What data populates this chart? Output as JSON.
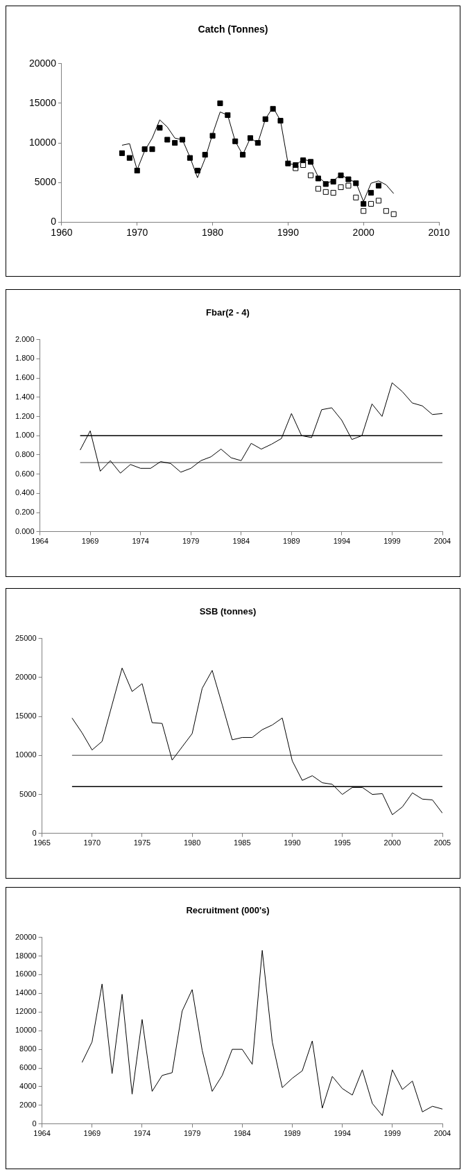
{
  "chart_data": [
    {
      "type": "line",
      "title": "Catch (Tonnes)",
      "xlim": [
        1960,
        2010
      ],
      "xticks": [
        1960,
        1970,
        1980,
        1990,
        2000,
        2010
      ],
      "ylim": [
        0,
        20000
      ],
      "yticks": [
        0,
        5000,
        10000,
        15000,
        20000
      ],
      "grid": false,
      "legend": false,
      "series": [
        {
          "type": "line",
          "color": "#000000",
          "x": [
            1968,
            1969,
            1970,
            1971,
            1972,
            1973,
            1974,
            1975,
            1976,
            1977,
            1978,
            1979,
            1980,
            1981,
            1982,
            1983,
            1984,
            1985,
            1986,
            1987,
            1988,
            1989,
            1990,
            1991,
            1992,
            1993,
            1994,
            1995,
            1996,
            1997,
            1998,
            1999,
            2000,
            2001,
            2002,
            2003,
            2004
          ],
          "values": [
            9700,
            9900,
            6600,
            9000,
            10600,
            12900,
            12000,
            10600,
            10400,
            8200,
            5600,
            8000,
            11100,
            13900,
            13500,
            10200,
            8500,
            10600,
            10000,
            13000,
            14500,
            12800,
            7400,
            7200,
            7900,
            7700,
            5700,
            4900,
            5200,
            6000,
            5400,
            5000,
            2600,
            4900,
            5200,
            4700,
            3600
          ]
        },
        {
          "type": "scatter",
          "marker": "square",
          "color": "#ffffff",
          "x": [
            1991,
            1992,
            1993,
            1994,
            1995,
            1996,
            1997,
            1998,
            1999,
            2000,
            2001,
            2002,
            2003,
            2004
          ],
          "values": [
            6800,
            7200,
            5900,
            4200,
            3800,
            3700,
            4400,
            4600,
            3100,
            1400,
            2300,
            2700,
            1400,
            1000
          ]
        },
        {
          "type": "scatter",
          "marker": "square",
          "color": "#000000",
          "x": [
            1968,
            1969,
            1970,
            1971,
            1972,
            1973,
            1974,
            1975,
            1976,
            1977,
            1978,
            1979,
            1980,
            1981,
            1982,
            1983,
            1984,
            1985,
            1986,
            1987,
            1988,
            1989,
            1990,
            1991,
            1992,
            1993,
            1994,
            1995,
            1996,
            1997,
            1998,
            1999,
            2000,
            2001,
            2002
          ],
          "values": [
            8700,
            8100,
            6500,
            9200,
            9200,
            11900,
            10400,
            10000,
            10400,
            8100,
            6500,
            8500,
            10900,
            15000,
            13500,
            10200,
            8500,
            10600,
            10000,
            13000,
            14300,
            12800,
            7400,
            7200,
            7800,
            7600,
            5500,
            4800,
            5100,
            5900,
            5400,
            4900,
            2300,
            3700,
            4600
          ]
        }
      ]
    },
    {
      "type": "line",
      "title": "Fbar(2 - 4)",
      "xlim": [
        1964,
        2004
      ],
      "xticks": [
        1964,
        1969,
        1974,
        1979,
        1984,
        1989,
        1994,
        1999,
        2004
      ],
      "ylim": [
        0,
        2
      ],
      "yticks": [
        {
          "value": 0,
          "label": "0.000"
        },
        {
          "value": 0.2,
          "label": "0.200"
        },
        {
          "value": 0.4,
          "label": "0.400"
        },
        {
          "value": 0.6,
          "label": "0.600"
        },
        {
          "value": 0.8,
          "label": "0.800"
        },
        {
          "value": 1,
          "label": "1.000"
        },
        {
          "value": 1.2,
          "label": "1.200"
        },
        {
          "value": 1.4,
          "label": "1.400"
        },
        {
          "value": 1.6,
          "label": "1.600"
        },
        {
          "value": 1.8,
          "label": "1.800"
        },
        {
          "value": 2,
          "label": "2.000"
        }
      ],
      "grid": false,
      "legend": false,
      "ref_lines": [
        {
          "axis": "y",
          "value": 1.0,
          "color": "#000000"
        },
        {
          "axis": "y",
          "value": 0.72,
          "color": "#808080"
        }
      ],
      "series": [
        {
          "type": "line",
          "color": "#000000",
          "x": [
            1968,
            1969,
            1970,
            1971,
            1972,
            1973,
            1974,
            1975,
            1976,
            1977,
            1978,
            1979,
            1980,
            1981,
            1982,
            1983,
            1984,
            1985,
            1986,
            1987,
            1988,
            1989,
            1990,
            1991,
            1992,
            1993,
            1994,
            1995,
            1996,
            1997,
            1998,
            1999,
            2000,
            2001,
            2002,
            2003,
            2004
          ],
          "values": [
            0.85,
            1.05,
            0.63,
            0.74,
            0.61,
            0.7,
            0.66,
            0.66,
            0.73,
            0.71,
            0.62,
            0.66,
            0.74,
            0.78,
            0.86,
            0.77,
            0.74,
            0.92,
            0.86,
            0.91,
            0.97,
            1.23,
            1.0,
            0.98,
            1.27,
            1.29,
            1.16,
            0.96,
            1.0,
            1.33,
            1.2,
            1.55,
            1.46,
            1.34,
            1.31,
            1.22,
            1.23
          ]
        }
      ]
    },
    {
      "type": "line",
      "title": "SSB (tonnes)",
      "xlim": [
        1965,
        2005
      ],
      "xticks": [
        1965,
        1970,
        1975,
        1980,
        1985,
        1990,
        1995,
        2000,
        2005
      ],
      "ylim": [
        0,
        25000
      ],
      "yticks": [
        0,
        5000,
        10000,
        15000,
        20000,
        25000
      ],
      "grid": false,
      "legend": false,
      "ref_lines": [
        {
          "axis": "y",
          "value": 10000,
          "color": "#808080"
        },
        {
          "axis": "y",
          "value": 6000,
          "color": "#000000"
        }
      ],
      "series": [
        {
          "type": "line",
          "color": "#000000",
          "x": [
            1968,
            1969,
            1970,
            1971,
            1972,
            1973,
            1974,
            1975,
            1976,
            1977,
            1978,
            1979,
            1980,
            1981,
            1982,
            1983,
            1984,
            1985,
            1986,
            1987,
            1988,
            1989,
            1990,
            1991,
            1992,
            1993,
            1994,
            1995,
            1996,
            1997,
            1998,
            1999,
            2000,
            2001,
            2002,
            2003,
            2004,
            2005
          ],
          "values": [
            14800,
            12900,
            10700,
            11800,
            16500,
            21200,
            18200,
            19200,
            14200,
            14100,
            9400,
            11100,
            12800,
            18600,
            20900,
            16500,
            12000,
            12300,
            12300,
            13300,
            13900,
            14800,
            9300,
            6800,
            7400,
            6500,
            6300,
            5000,
            5900,
            5900,
            5000,
            5100,
            2400,
            3400,
            5200,
            4400,
            4300,
            2600
          ]
        }
      ]
    },
    {
      "type": "line",
      "title": "Recruitment (000's)",
      "xlim": [
        1964,
        2004
      ],
      "xticks": [
        1964,
        1969,
        1974,
        1979,
        1984,
        1989,
        1994,
        1999,
        2004
      ],
      "ylim": [
        0,
        20000
      ],
      "yticks": [
        0,
        2000,
        4000,
        6000,
        8000,
        10000,
        12000,
        14000,
        16000,
        18000,
        20000
      ],
      "grid": false,
      "legend": false,
      "series": [
        {
          "type": "line",
          "color": "#000000",
          "x": [
            1968,
            1969,
            1970,
            1971,
            1972,
            1973,
            1974,
            1975,
            1976,
            1977,
            1978,
            1979,
            1980,
            1981,
            1982,
            1983,
            1984,
            1985,
            1986,
            1987,
            1988,
            1989,
            1990,
            1991,
            1992,
            1993,
            1994,
            1995,
            1996,
            1997,
            1998,
            1999,
            2000,
            2001,
            2002,
            2003,
            2004
          ],
          "values": [
            6600,
            8800,
            15000,
            5400,
            13900,
            3200,
            11200,
            3500,
            5200,
            5500,
            12100,
            14400,
            7900,
            3500,
            5200,
            8000,
            8000,
            6400,
            18600,
            8800,
            3900,
            4900,
            5700,
            8900,
            1700,
            5100,
            3800,
            3100,
            5800,
            2200,
            900,
            5800,
            3700,
            4600,
            1300,
            1900,
            1600
          ]
        }
      ]
    }
  ]
}
